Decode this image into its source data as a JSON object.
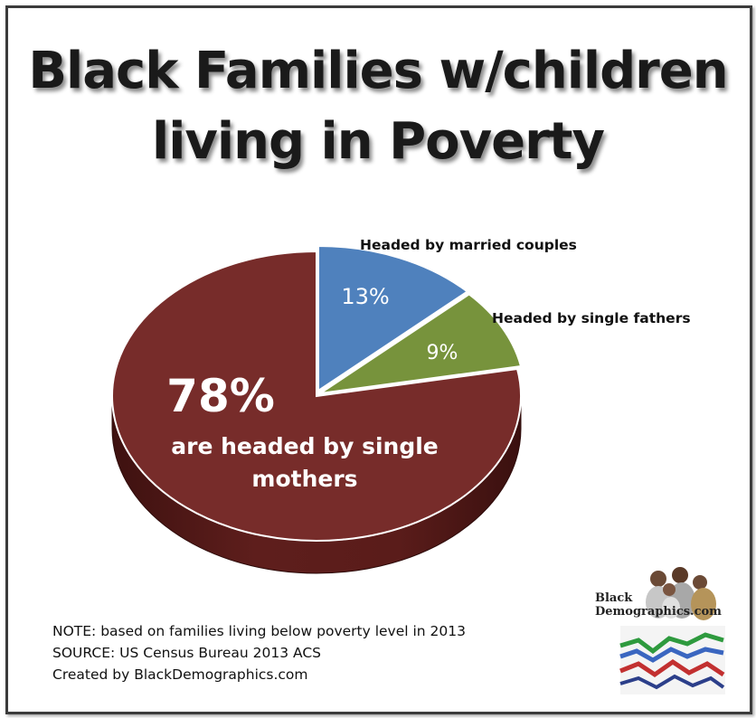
{
  "title": {
    "line1": "Black Families w/children",
    "line2": "living in Poverty"
  },
  "chart_data": {
    "type": "pie",
    "title": "Black Families w/children living in Poverty",
    "slices": [
      {
        "label": "Headed by married couples",
        "value": 13,
        "display": "13%",
        "color": "#4f81bd"
      },
      {
        "label": "Headed by single fathers",
        "value": 9,
        "display": "9%",
        "color": "#77933c"
      },
      {
        "label": "are headed by single mothers",
        "value": 78,
        "display": "78%",
        "color": "#772c2a"
      }
    ],
    "main_label": {
      "percent": "78%",
      "line1": "are headed by single",
      "line2": "mothers"
    }
  },
  "notes": {
    "note": "NOTE: based on families living below poverty level in 2013",
    "source": "SOURCE: US Census  Bureau 2013 ACS",
    "created": "Created by BlackDemographics.com"
  },
  "logo": {
    "line1": "Black",
    "line2": "Demographics.com"
  }
}
